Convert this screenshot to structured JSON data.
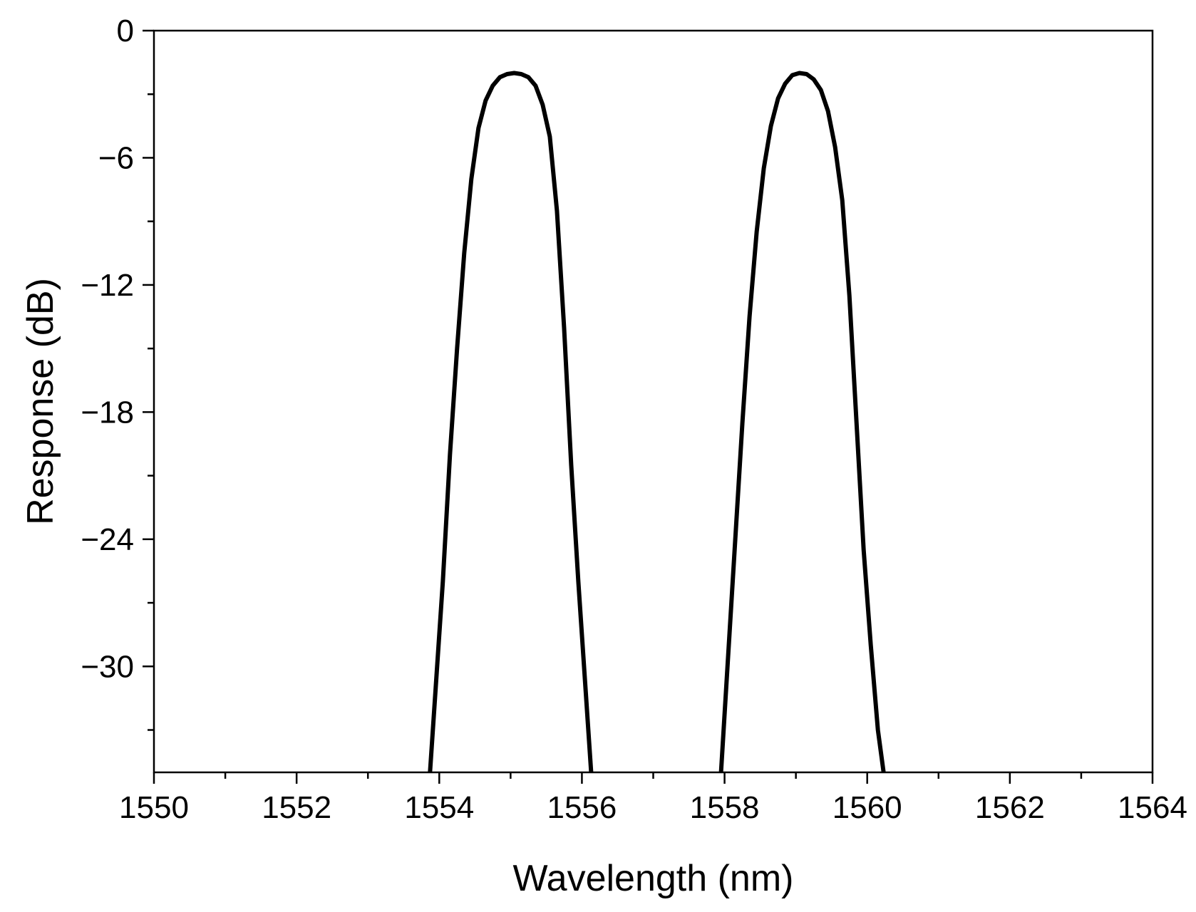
{
  "chart_data": {
    "type": "line",
    "xlabel": "Wavelength (nm)",
    "ylabel": "Response (dB)",
    "xlim": [
      1550,
      1564
    ],
    "ylim": [
      -35,
      0
    ],
    "x_ticks": [
      1550,
      1552,
      1554,
      1556,
      1558,
      1560,
      1562,
      1564
    ],
    "x_tick_labels": [
      "1550",
      "1552",
      "1554",
      "1556",
      "1558",
      "1560",
      "1562",
      "1564"
    ],
    "y_ticks": [
      0,
      -6,
      -12,
      -18,
      -24,
      -30
    ],
    "y_tick_labels": [
      "0",
      "−6",
      "−12",
      "−18",
      "−24",
      "−30"
    ],
    "x_minor_step": 1,
    "y_minor_step": 3,
    "grid": false,
    "legend": "none",
    "line_color": "#000000",
    "series": [
      {
        "x": [
          1553.87,
          1553.95,
          1554.05,
          1554.15,
          1554.25,
          1554.35,
          1554.45,
          1554.55,
          1554.65,
          1554.75,
          1554.85,
          1554.95,
          1555.05,
          1555.15,
          1555.25,
          1555.35,
          1555.45,
          1555.55,
          1555.65,
          1555.75,
          1555.85,
          1555.95,
          1556.05,
          1556.13
        ],
        "y": [
          -35.0,
          -31.0,
          -26.0,
          -20.0,
          -15.0,
          -10.5,
          -7.0,
          -4.6,
          -3.3,
          -2.6,
          -2.2,
          -2.05,
          -2.0,
          -2.05,
          -2.2,
          -2.6,
          -3.5,
          -5.0,
          -8.5,
          -14.0,
          -20.5,
          -26.0,
          -31.0,
          -35.0
        ]
      },
      {
        "x": [
          1557.95,
          1558.05,
          1558.15,
          1558.25,
          1558.35,
          1558.45,
          1558.55,
          1558.65,
          1558.75,
          1558.85,
          1558.95,
          1559.05,
          1559.15,
          1559.25,
          1559.35,
          1559.45,
          1559.55,
          1559.65,
          1559.75,
          1559.85,
          1559.95,
          1560.05,
          1560.15,
          1560.23
        ],
        "y": [
          -35.0,
          -29.5,
          -24.0,
          -18.5,
          -13.5,
          -9.5,
          -6.5,
          -4.5,
          -3.2,
          -2.5,
          -2.1,
          -2.0,
          -2.05,
          -2.3,
          -2.8,
          -3.8,
          -5.5,
          -8.0,
          -12.5,
          -18.5,
          -24.5,
          -29.0,
          -33.0,
          -35.0
        ]
      }
    ]
  }
}
